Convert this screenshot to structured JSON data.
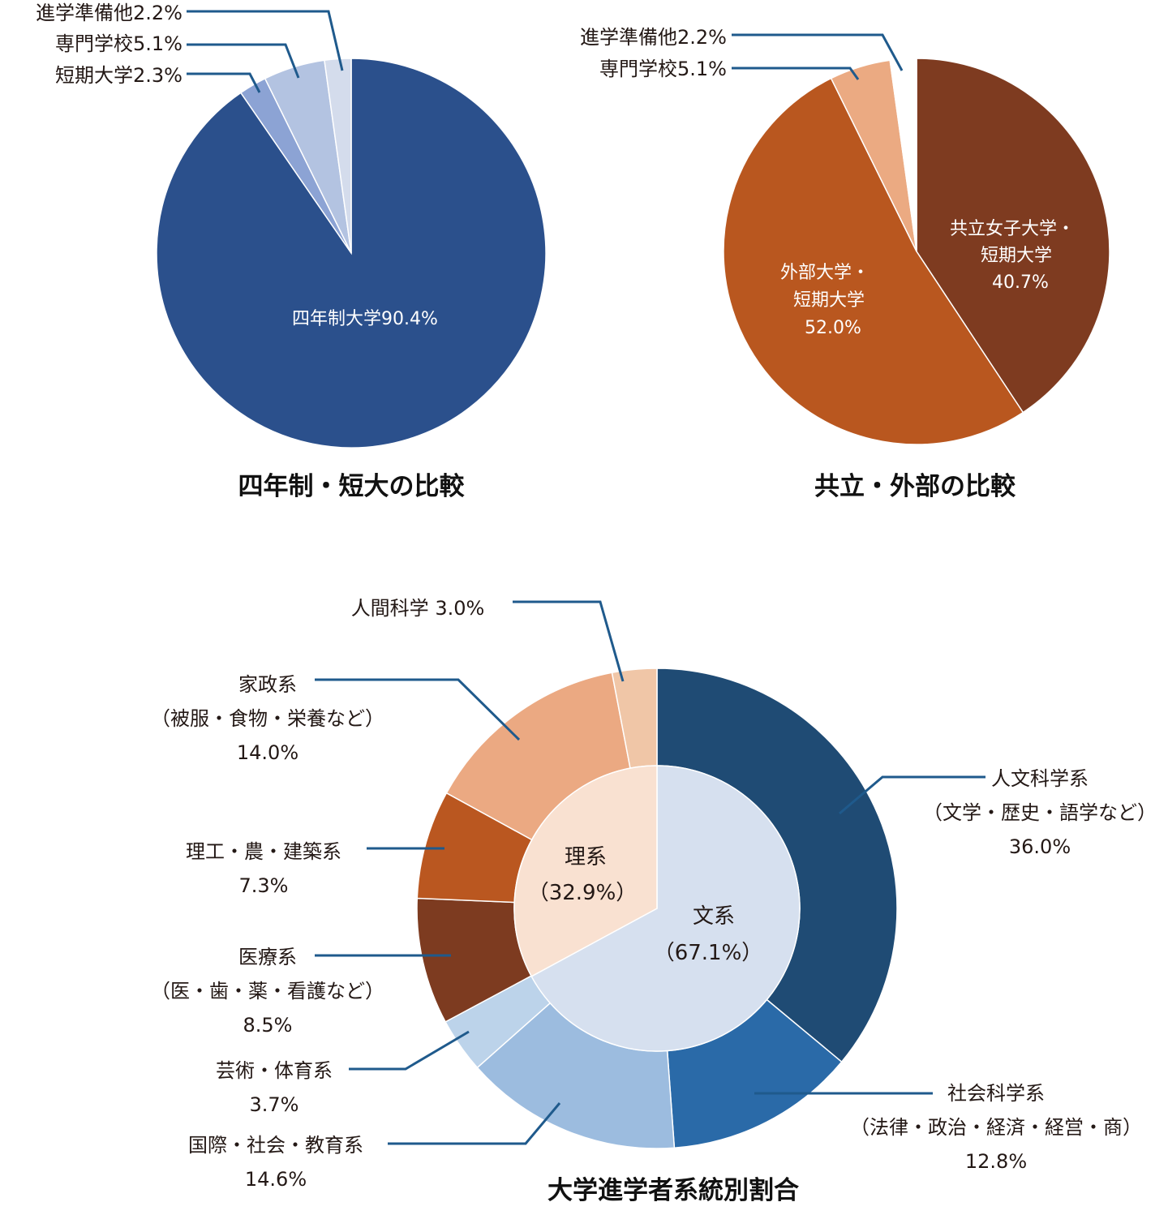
{
  "chart_data": [
    {
      "type": "pie",
      "title": "四年制・短大の比較",
      "slices": [
        {
          "name": "四年制大学",
          "value": 90.4,
          "label": "四年制大学90.4%",
          "color": "#2b508c"
        },
        {
          "name": "短期大学",
          "value": 2.3,
          "label": "短期大学2.3%",
          "color": "#8ca3d4"
        },
        {
          "name": "専門学校",
          "value": 5.1,
          "label": "専門学校5.1%",
          "color": "#b3c3e1"
        },
        {
          "name": "進学準備他",
          "value": 2.2,
          "label": "進学準備他2.2%",
          "color": "#d4dcec"
        }
      ]
    },
    {
      "type": "pie",
      "title": "共立・外部の比較",
      "slices": [
        {
          "name": "共立女子大学・短期大学",
          "value": 40.7,
          "label_lines": [
            "共立女子大学・",
            "短期大学",
            "40.7%"
          ],
          "color": "#7e3b20"
        },
        {
          "name": "外部大学・短期大学",
          "value": 52.0,
          "label_lines": [
            "外部大学・",
            "短期大学",
            "52.0%"
          ],
          "color": "#b9571f"
        },
        {
          "name": "専門学校",
          "value": 5.1,
          "label": "専門学校5.1%",
          "color": "#ebaa82"
        },
        {
          "name": "進学準備他",
          "value": 2.2,
          "label": "進学準備他2.2%",
          "color": "#ffffff"
        }
      ]
    },
    {
      "type": "donut",
      "title": "大学進学者系統別割合",
      "inner": [
        {
          "name": "文系",
          "value": 67.1,
          "label_lines": [
            "文系",
            "（67.1%）"
          ],
          "color": "#d6e0ef"
        },
        {
          "name": "理系",
          "value": 32.9,
          "label_lines": [
            "理系",
            "（32.9%）"
          ],
          "color": "#f9e1d1"
        }
      ],
      "outer": [
        {
          "name": "人文科学系",
          "value": 36.0,
          "label_lines": [
            "人文科学系",
            "（文学・歴史・語学など）",
            "36.0%"
          ],
          "color": "#1f4b74"
        },
        {
          "name": "社会科学系",
          "value": 12.8,
          "label_lines": [
            "社会科学系",
            "（法律・政治・経済・経営・商）",
            "12.8%"
          ],
          "color": "#2a6aa8"
        },
        {
          "name": "国際・社会・教育系",
          "value": 14.6,
          "label_lines": [
            "国際・社会・教育系",
            "14.6%"
          ],
          "color": "#9cbcdf"
        },
        {
          "name": "芸術・体育系",
          "value": 3.7,
          "label_lines": [
            "芸術・体育系",
            "3.7%"
          ],
          "color": "#bcd3ea"
        },
        {
          "name": "医療系",
          "value": 8.5,
          "label_lines": [
            "医療系",
            "（医・歯・薬・看護など）",
            "8.5%"
          ],
          "color": "#7d3b20"
        },
        {
          "name": "理工・農・建築系",
          "value": 7.3,
          "label_lines": [
            "理工・農・建築系",
            "7.3%"
          ],
          "color": "#ba5720"
        },
        {
          "name": "家政系",
          "value": 14.0,
          "label_lines": [
            "家政系",
            "（被服・食物・栄養など）",
            "14.0%"
          ],
          "color": "#eba982"
        },
        {
          "name": "人間科学",
          "value": 3.0,
          "label_lines": [
            "人間科学 3.0%"
          ],
          "color": "#f0c6a7"
        }
      ]
    }
  ]
}
